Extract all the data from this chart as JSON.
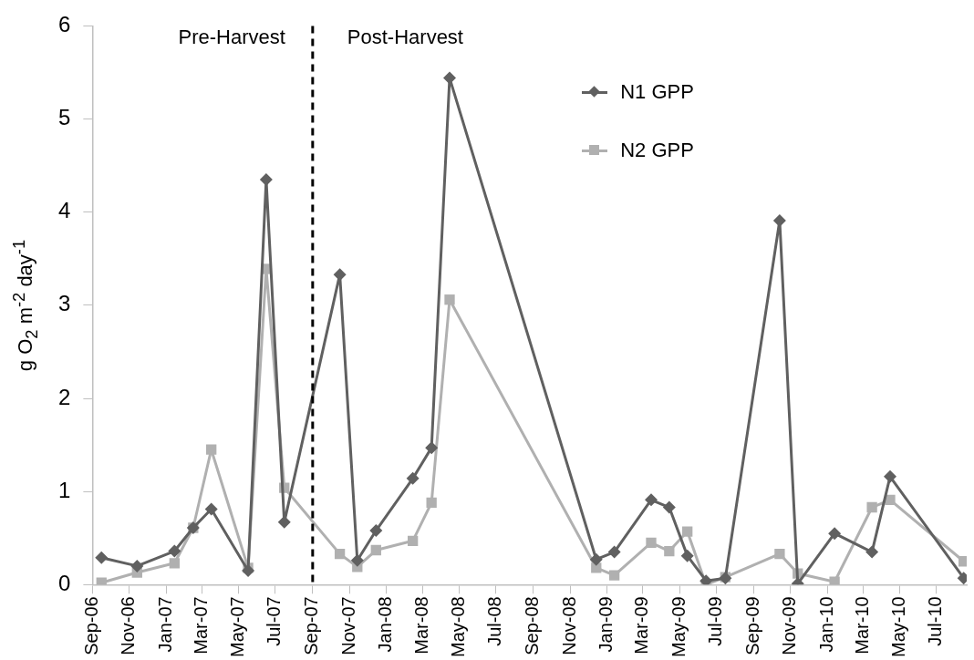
{
  "chart_data": {
    "type": "line",
    "ylabel": "g O$_{2}$ m$^{-2}$ day$^{-1}$",
    "x": [
      "2006-09-16",
      "2006-11-14",
      "2007-01-15",
      "2007-02-15",
      "2007-03-17",
      "2007-05-17",
      "2007-06-16",
      "2007-07-16",
      "2007-10-16",
      "2007-11-14",
      "2007-12-15",
      "2008-02-14",
      "2008-03-16",
      "2008-04-15",
      "2008-12-14",
      "2009-01-13",
      "2009-03-15",
      "2009-04-14",
      "2009-05-14",
      "2009-06-14",
      "2009-07-16",
      "2009-10-14",
      "2009-11-13",
      "2010-01-13",
      "2010-03-16",
      "2010-04-15",
      "2010-08-15"
    ],
    "series": [
      {
        "name": "N1 GPP",
        "color": "#606060",
        "marker": "diamond",
        "values": [
          0.29,
          0.2,
          0.36,
          0.61,
          0.81,
          0.15,
          4.35,
          0.67,
          3.33,
          0.26,
          0.58,
          1.14,
          1.47,
          5.44,
          0.27,
          0.35,
          0.91,
          0.83,
          0.31,
          0.04,
          0.07,
          3.91,
          0.01,
          0.55,
          0.35,
          1.16,
          0.07
        ]
      },
      {
        "name": "N2 GPP",
        "color": "#b0b0b0",
        "marker": "square",
        "values": [
          0.02,
          0.13,
          0.23,
          0.61,
          1.45,
          0.18,
          3.39,
          1.04,
          0.33,
          0.19,
          0.37,
          0.47,
          0.88,
          3.06,
          0.18,
          0.1,
          0.45,
          0.36,
          0.57,
          0.0,
          0.08,
          0.33,
          0.12,
          0.03,
          0.83,
          0.91,
          0.25
        ]
      }
    ],
    "xlim": [
      "2006-09-01",
      "2010-08-20"
    ],
    "xticks": [
      {
        "value": "2006-09-01",
        "label": "Sep-06"
      },
      {
        "value": "2006-11-01",
        "label": "Nov-06"
      },
      {
        "value": "2007-01-01",
        "label": "Jan-07"
      },
      {
        "value": "2007-03-01",
        "label": "Mar-07"
      },
      {
        "value": "2007-05-01",
        "label": "May-07"
      },
      {
        "value": "2007-07-01",
        "label": "Jul-07"
      },
      {
        "value": "2007-09-01",
        "label": "Sep-07"
      },
      {
        "value": "2007-11-01",
        "label": "Nov-07"
      },
      {
        "value": "2008-01-01",
        "label": "Jan-08"
      },
      {
        "value": "2008-03-01",
        "label": "Mar-08"
      },
      {
        "value": "2008-05-01",
        "label": "May-08"
      },
      {
        "value": "2008-07-01",
        "label": "Jul-08"
      },
      {
        "value": "2008-09-01",
        "label": "Sep-08"
      },
      {
        "value": "2008-11-01",
        "label": "Nov-08"
      },
      {
        "value": "2009-01-01",
        "label": "Jan-09"
      },
      {
        "value": "2009-03-01",
        "label": "Mar-09"
      },
      {
        "value": "2009-05-01",
        "label": "May-09"
      },
      {
        "value": "2009-07-01",
        "label": "Jul-09"
      },
      {
        "value": "2009-09-01",
        "label": "Sep-09"
      },
      {
        "value": "2009-11-01",
        "label": "Nov-09"
      },
      {
        "value": "2010-01-01",
        "label": "Jan-10"
      },
      {
        "value": "2010-03-01",
        "label": "Mar-10"
      },
      {
        "value": "2010-05-01",
        "label": "May-10"
      },
      {
        "value": "2010-07-01",
        "label": "Jul-10"
      }
    ],
    "ylim": [
      0,
      6
    ],
    "yticks": [
      0,
      1,
      2,
      3,
      4,
      5,
      6
    ],
    "ref_lines": [
      {
        "axis": "x",
        "value": "2007-09-01",
        "color": "#000000",
        "line_style": "dashed"
      }
    ],
    "annotations": [
      "Pre-Harvest",
      "Post-Harvest"
    ],
    "legend": "top right",
    "grid": false,
    "line_style": "solid"
  }
}
